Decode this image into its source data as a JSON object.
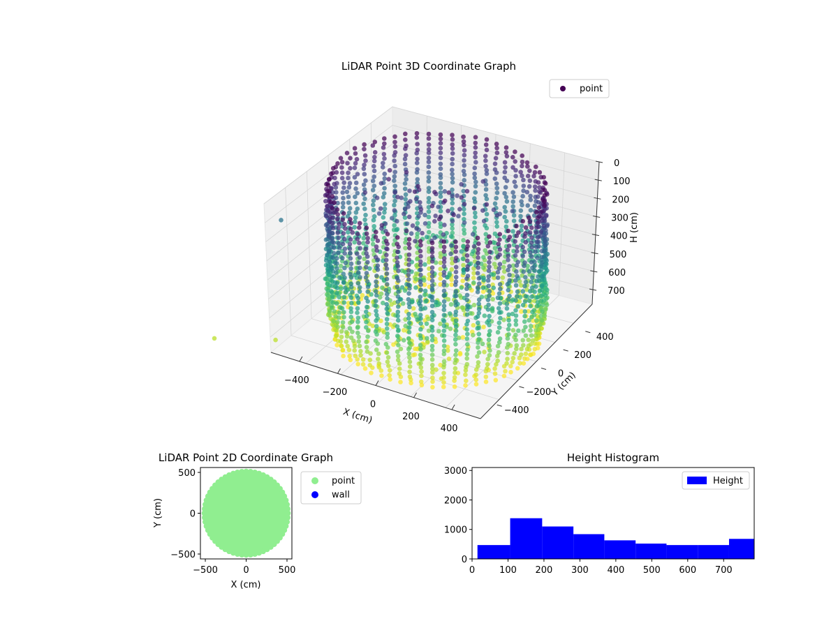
{
  "chart_data": [
    {
      "type": "scatter",
      "title": "LiDAR Point 3D Coordinate Graph",
      "xlabel": "X (cm)",
      "ylabel": "Y (cm)",
      "zlabel": "H (cm)",
      "xticks": [
        "−400",
        "−200",
        "0",
        "200",
        "400"
      ],
      "yticks": [
        "−400",
        "−200",
        "0",
        "200",
        "400"
      ],
      "zticks": [
        "0",
        "100",
        "200",
        "300",
        "400",
        "500",
        "600",
        "700"
      ],
      "xlim": [
        -550,
        550
      ],
      "ylim": [
        -550,
        550
      ],
      "zlim": [
        0,
        780
      ],
      "z_inverted": true,
      "colormap": "viridis",
      "legend": {
        "position": "top-right",
        "entries": [
          {
            "label": "point",
            "color": "#440154"
          }
        ]
      },
      "structure": {
        "cylinder_radius_cm": 500,
        "wall_columns": 58,
        "height_range_cm": [
          0,
          780
        ]
      }
    },
    {
      "type": "scatter",
      "title": "LiDAR Point 2D Coordinate Graph",
      "xlabel": "X (cm)",
      "ylabel": "Y (cm)",
      "xticks": [
        "−500",
        "0",
        "500"
      ],
      "yticks": [
        "−500",
        "0",
        "500"
      ],
      "xlim": [
        -560,
        560
      ],
      "ylim": [
        -560,
        560
      ],
      "legend": {
        "position": "outside-right",
        "entries": [
          {
            "label": "point",
            "color": "#90ee90"
          },
          {
            "label": "wall",
            "color": "#0000ff"
          }
        ]
      },
      "disk_radius_cm": 520
    },
    {
      "type": "bar",
      "title": "Height Histogram",
      "xticks": [
        "0",
        "100",
        "200",
        "300",
        "400",
        "500",
        "600",
        "700"
      ],
      "yticks": [
        "0",
        "1000",
        "2000",
        "3000"
      ],
      "xlim": [
        0,
        785
      ],
      "ylim": [
        0,
        3100
      ],
      "bin_edges": [
        15,
        106,
        195,
        282,
        368,
        455,
        541,
        628,
        715,
        785
      ],
      "values": [
        470,
        1380,
        1100,
        840,
        630,
        520,
        470,
        470,
        680
      ],
      "color": "#0000ff",
      "legend": {
        "position": "top-right",
        "entries": [
          {
            "label": "Height",
            "color": "#0000ff"
          }
        ]
      }
    }
  ]
}
